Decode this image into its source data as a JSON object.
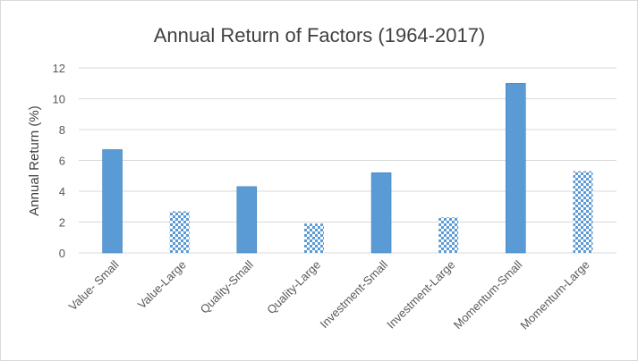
{
  "chart_data": {
    "type": "bar",
    "title": "Annual Return of Factors (1964-2017)",
    "xlabel": "",
    "ylabel": "Annual Return (%)",
    "ylim": [
      0,
      12
    ],
    "y_ticks": [
      "0",
      "2",
      "4",
      "6",
      "8",
      "10",
      "12"
    ],
    "grid": true,
    "legend": "none",
    "categories": [
      "Value- Small",
      "Value-Large",
      "Quality-Small",
      "Quality-Large",
      "Investment-Small",
      "Investment-Large",
      "Momentum-Small",
      "Momentum-Large"
    ],
    "values": [
      6.7,
      2.7,
      4.3,
      1.9,
      5.2,
      2.3,
      11.0,
      5.3
    ],
    "bar_fill": [
      "solid",
      "checkered",
      "solid",
      "checkered",
      "solid",
      "checkered",
      "solid",
      "checkered"
    ],
    "colors": {
      "bar": "#5b9bd5",
      "bar_dark": "#2e75b6",
      "gridline": "#d9d9d9",
      "text": "#595959"
    }
  }
}
